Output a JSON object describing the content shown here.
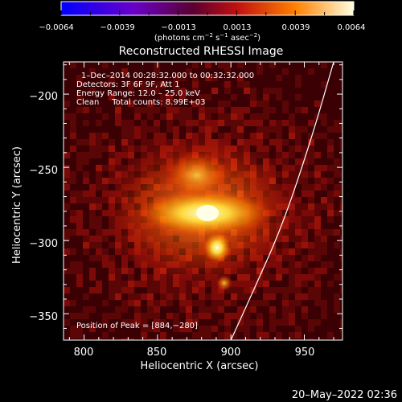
{
  "colorbar": {
    "tick_labels": [
      "−0.0064",
      "−0.0039",
      "−0.0013",
      "0.0013",
      "0.0039",
      "0.0064"
    ],
    "units_label": "(photons cm",
    "units_exp1": "−2",
    "units_mid1": " s",
    "units_exp2": "−1",
    "units_mid2": " asec",
    "units_exp3": "−2",
    "units_end": ")"
  },
  "chart_data": {
    "type": "heatmap",
    "title": "Reconstructed RHESSI Image",
    "xlabel": "Heliocentric X (arcsec)",
    "ylabel": "Heliocentric Y (arcsec)",
    "xlim": [
      786,
      976
    ],
    "ylim": [
      -368,
      -178
    ],
    "xticks": [
      800,
      850,
      900,
      950
    ],
    "yticks": [
      -200,
      -250,
      -300,
      -350
    ],
    "xtick_labels": [
      "800",
      "850",
      "900",
      "950"
    ],
    "ytick_labels": [
      "−200",
      "−250",
      "−300",
      "−350"
    ],
    "colorbar_range": [
      -0.0064,
      0.0064
    ],
    "colormap": "blue-purple-red-orange-yellow-white",
    "annotations": [
      "1–Dec–2014 00:28:32.000 to 00:32:32.000",
      "Detectors: 3F 6F 9F, Att 1",
      "Energy Range: 12.0 – 25.0 keV",
      "Clean     Total counts: 8.99E+03"
    ],
    "peak_label": "Position of Peak = [884,−280]",
    "peak": [
      884,
      -280
    ],
    "sources": [
      {
        "x": 884,
        "y": -280,
        "level": 1.0
      },
      {
        "x": 875,
        "y": -275,
        "level": 0.85
      },
      {
        "x": 892,
        "y": -305,
        "level": 0.75
      },
      {
        "x": 870,
        "y": -255,
        "level": 0.55
      },
      {
        "x": 880,
        "y": -320,
        "level": 0.5
      }
    ],
    "limb_curve": [
      [
        970,
        -178
      ],
      [
        955,
        -230
      ],
      [
        935,
        -290
      ],
      [
        915,
        -335
      ],
      [
        900,
        -368
      ]
    ]
  },
  "footer": {
    "date": "20–May–2022 02:36"
  }
}
